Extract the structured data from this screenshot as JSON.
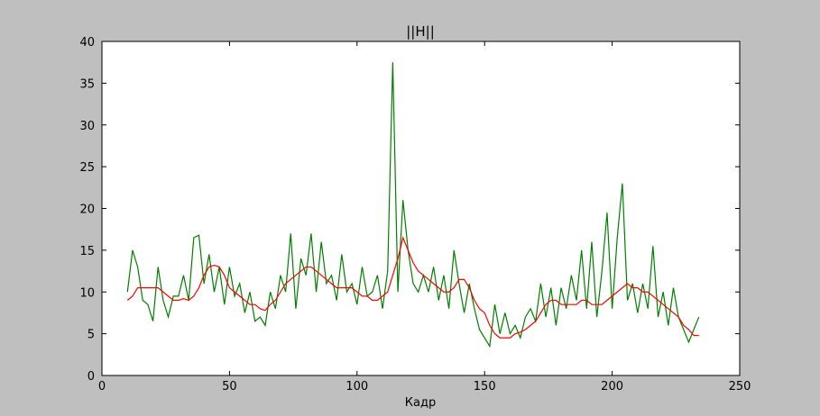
{
  "chart_data": {
    "type": "line",
    "title": "||H||",
    "xlabel": "Кадр",
    "x": [
      10,
      12,
      14,
      16,
      18,
      20,
      22,
      24,
      26,
      28,
      30,
      32,
      34,
      36,
      38,
      40,
      42,
      44,
      46,
      48,
      50,
      52,
      54,
      56,
      58,
      60,
      62,
      64,
      66,
      68,
      70,
      72,
      74,
      76,
      78,
      80,
      82,
      84,
      86,
      88,
      90,
      92,
      94,
      96,
      98,
      100,
      102,
      104,
      106,
      108,
      110,
      112,
      114,
      116,
      118,
      120,
      122,
      124,
      126,
      128,
      130,
      132,
      134,
      136,
      138,
      140,
      142,
      144,
      146,
      148,
      150,
      152,
      154,
      156,
      158,
      160,
      162,
      164,
      166,
      168,
      170,
      172,
      174,
      176,
      178,
      180,
      182,
      184,
      186,
      188,
      190,
      192,
      194,
      196,
      198,
      200,
      202,
      204,
      206,
      208,
      210,
      212,
      214,
      216,
      218,
      220,
      222,
      224,
      226,
      228,
      230,
      232,
      234
    ],
    "series": [
      {
        "color": "#008000",
        "values": [
          10,
          15,
          13,
          9,
          8.5,
          6.5,
          13,
          9,
          7,
          9.5,
          9.5,
          12,
          9,
          16.5,
          16.8,
          11,
          14.5,
          10,
          13,
          8.5,
          13,
          9.5,
          11,
          7.5,
          10,
          6.5,
          7,
          6,
          10,
          8,
          12,
          10,
          17,
          8,
          14,
          12,
          17,
          10,
          16,
          11,
          12,
          9,
          14.5,
          10,
          11,
          8.5,
          13,
          9.5,
          10,
          12,
          8,
          12.5,
          37.5,
          10,
          21,
          15,
          11,
          10,
          12,
          10,
          13,
          9,
          12,
          8,
          15,
          11,
          7.5,
          11,
          8,
          5.5,
          4.5,
          3.5,
          8.5,
          5,
          7.5,
          5,
          6,
          4.5,
          7,
          8,
          6.5,
          11,
          7,
          10.5,
          6,
          10.5,
          8,
          12,
          9,
          15,
          8,
          16,
          7,
          12.5,
          19.5,
          8,
          16.5,
          23,
          9,
          11,
          7.5,
          11,
          8,
          15.5,
          7,
          10,
          6,
          10.5,
          7,
          5.5,
          4,
          5.5,
          7
        ]
      },
      {
        "color": "#ff0000",
        "values": [
          9,
          9.5,
          10.5,
          10.5,
          10.5,
          10.5,
          10.5,
          10,
          9.5,
          9,
          9,
          9.2,
          9,
          9.5,
          10.5,
          12,
          13,
          13.2,
          13,
          12,
          10.5,
          10,
          9.5,
          9,
          8.5,
          8.5,
          8,
          7.8,
          8.5,
          9,
          10,
          11,
          11.5,
          12,
          12.5,
          13,
          13,
          12.5,
          12,
          11.5,
          11,
          10.5,
          10.5,
          10.5,
          10.5,
          10,
          9.5,
          9.5,
          9,
          9,
          9.5,
          10,
          12,
          14,
          16.5,
          15,
          13.5,
          12.5,
          12,
          11.5,
          11,
          10.5,
          10,
          10,
          10.5,
          11.5,
          11.5,
          10.5,
          9,
          8,
          7.5,
          6,
          5,
          4.5,
          4.5,
          4.5,
          5,
          5.2,
          5.5,
          6,
          6.5,
          7.5,
          8.5,
          9,
          9,
          8.5,
          8.5,
          8.5,
          8.5,
          9,
          9,
          8.5,
          8.5,
          8.5,
          9,
          9.5,
          10,
          10.5,
          11,
          10.5,
          10.5,
          10,
          10,
          9.5,
          9,
          8.5,
          8,
          7.5,
          7,
          6,
          5.5,
          4.8,
          4.8
        ]
      }
    ],
    "xlim": [
      0,
      250
    ],
    "xticks": [
      0,
      50,
      100,
      150,
      200,
      250
    ],
    "ylim": [
      0,
      40
    ],
    "yticks": [
      0,
      5,
      10,
      15,
      20,
      25,
      30,
      35,
      40
    ]
  }
}
